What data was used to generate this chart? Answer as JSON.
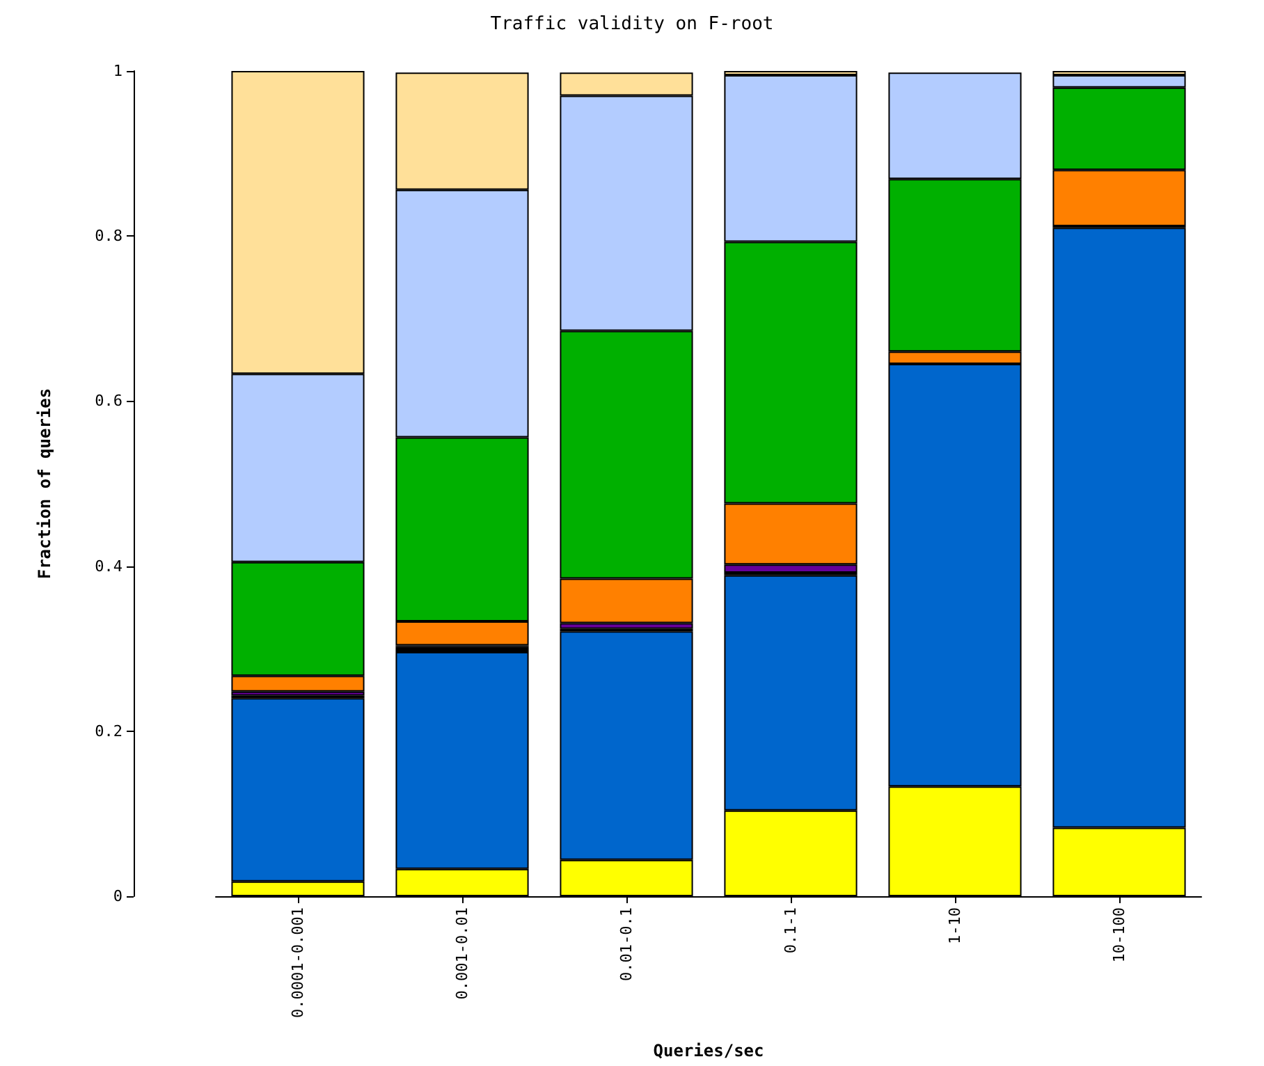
{
  "chart_data": {
    "type": "bar",
    "title": "Traffic validity on F-root",
    "xlabel": "Queries/sec",
    "ylabel": "Fraction of queries",
    "categories": [
      "0.0001-0.001",
      "0.001-0.01",
      "0.01-0.1",
      "0.1-1",
      "1-10",
      "10-100"
    ],
    "stacked": true,
    "ylim": [
      0,
      1
    ],
    "yticks": [
      0,
      0.2,
      0.4,
      0.6,
      0.8,
      1
    ],
    "series": [
      {
        "color": "#ffff00",
        "values": [
          0.018,
          0.033,
          0.044,
          0.104,
          0.133,
          0.083
        ]
      },
      {
        "color": "#0066cc",
        "values": [
          0.222,
          0.263,
          0.277,
          0.285,
          0.512,
          0.727
        ]
      },
      {
        "color": "#000000",
        "values": [
          0.003,
          0.006,
          0.003,
          0.003,
          null,
          0.002
        ]
      },
      {
        "color": "#660099",
        "values": [
          0.005,
          0.002,
          0.007,
          0.01,
          null,
          null
        ]
      },
      {
        "color": "#ff8000",
        "values": [
          0.019,
          0.029,
          0.054,
          0.074,
          0.015,
          0.068
        ]
      },
      {
        "color": "#00b000",
        "values": [
          0.138,
          0.223,
          0.3,
          0.317,
          0.209,
          0.1
        ]
      },
      {
        "color": "#b3ccff",
        "values": [
          0.228,
          0.3,
          0.285,
          0.202,
          0.129,
          0.015
        ]
      },
      {
        "color": "#ffe099",
        "values": [
          0.367,
          0.142,
          0.028,
          0.005,
          null,
          0.005
        ]
      }
    ]
  }
}
